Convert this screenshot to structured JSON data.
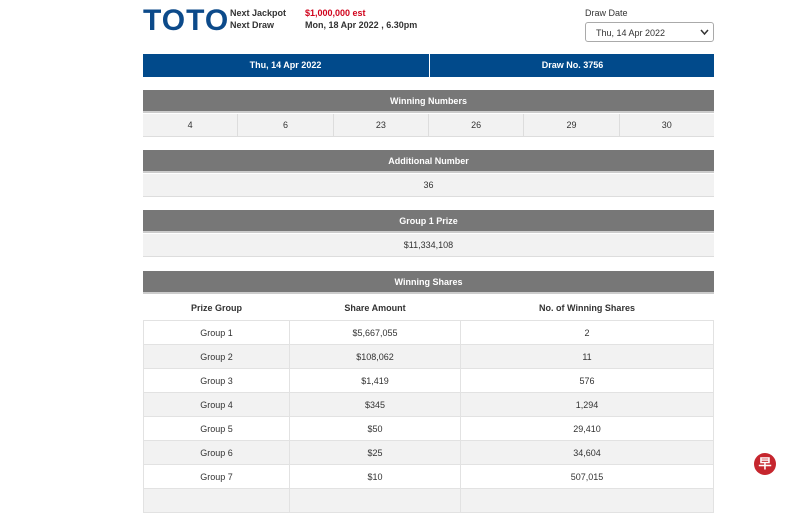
{
  "header": {
    "logo": "TOTO",
    "next_jackpot_label": "Next Jackpot",
    "next_jackpot_value": "$1,000,000 est",
    "next_draw_label": "Next Draw",
    "next_draw_value": "Mon, 18 Apr 2022 , 6.30pm",
    "draw_date_label": "Draw Date",
    "draw_date_selected": "Thu, 14 Apr 2022"
  },
  "draw_bar": {
    "date": "Thu, 14 Apr 2022",
    "draw_no": "Draw No. 3756"
  },
  "winning_numbers": {
    "title": "Winning Numbers",
    "numbers": [
      "4",
      "6",
      "23",
      "26",
      "29",
      "30"
    ]
  },
  "additional_number": {
    "title": "Additional Number",
    "number": "36"
  },
  "group1_prize": {
    "title": "Group 1 Prize",
    "amount": "$11,334,108"
  },
  "winning_shares": {
    "title": "Winning Shares",
    "columns": [
      "Prize Group",
      "Share Amount",
      "No. of Winning Shares"
    ],
    "rows": [
      [
        "Group 1",
        "$5,667,055",
        "2"
      ],
      [
        "Group 2",
        "$108,062",
        "11"
      ],
      [
        "Group 3",
        "$1,419",
        "576"
      ],
      [
        "Group 4",
        "$345",
        "1,294"
      ],
      [
        "Group 5",
        "$50",
        "29,410"
      ],
      [
        "Group 6",
        "$25",
        "34,604"
      ],
      [
        "Group 7",
        "$10",
        "507,015"
      ]
    ]
  },
  "watermark": "早"
}
